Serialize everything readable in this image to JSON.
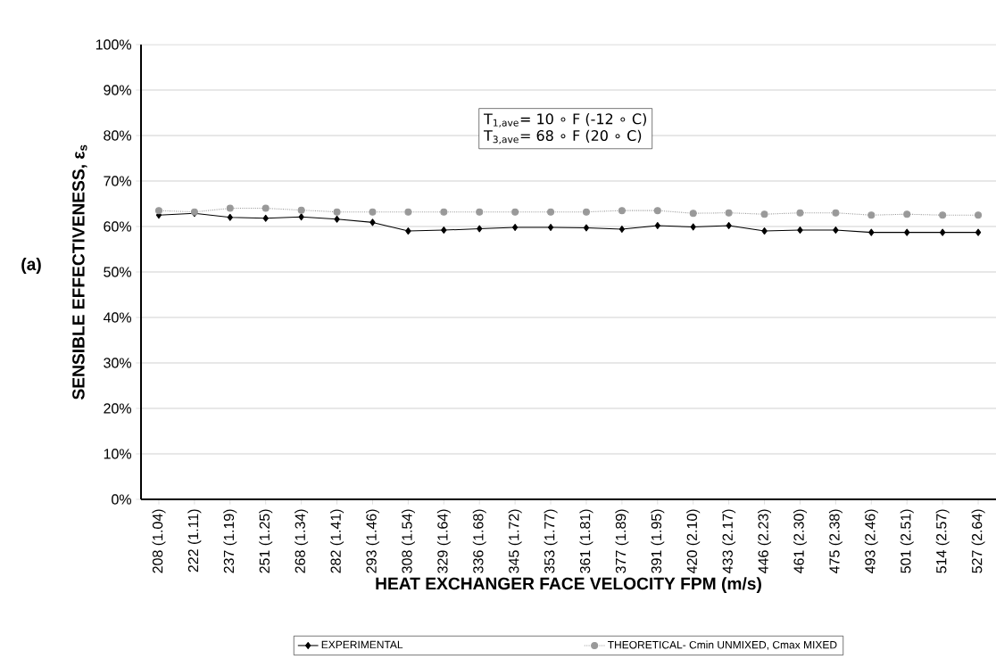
{
  "chart_data": {
    "type": "line",
    "xlabel": "HEAT EXCHANGER FACE VELOCITY FPM (m/s)",
    "ylabel": "SENSIBLE EFFECTIVENESS, ε$_{s}$",
    "categories": [
      "208 (1.04)",
      "222 (1.11)",
      "237 (1.19)",
      "251 (1.25)",
      "268 (1.34)",
      "282 (1.41)",
      "293 (1.46)",
      "308 (1.54)",
      "329 (1.64)",
      "336 (1.68)",
      "345 (1.72)",
      "353 (1.77)",
      "361 (1.81)",
      "377 (1.89)",
      "391 (1.95)",
      "420 (2.10)",
      "433 (2.17)",
      "446 (2.23)",
      "461 (2.30)",
      "475 (2.38)",
      "493 (2.46)",
      "501 (2.51)",
      "514 (2.57)",
      "527 (2.64)"
    ],
    "series": [
      {
        "name": "EXPERIMENTAL",
        "color": "#000000",
        "marker": "diamond",
        "line_style": "solid",
        "values": [
          62.5,
          62.9,
          62.0,
          61.8,
          62.1,
          61.6,
          60.9,
          59.0,
          59.2,
          59.5,
          59.8,
          59.8,
          59.7,
          59.4,
          60.2,
          59.9,
          60.2,
          59.0,
          59.2,
          59.2,
          58.7,
          58.7,
          58.7,
          58.7
        ]
      },
      {
        "name": "THEORETICAL- Cmin UNMIXED, Cmax MIXED",
        "color": "#999999",
        "marker": "circle",
        "line_style": "dotted",
        "values": [
          63.5,
          63.2,
          64.0,
          64.0,
          63.6,
          63.2,
          63.2,
          63.2,
          63.2,
          63.2,
          63.2,
          63.2,
          63.2,
          63.5,
          63.5,
          62.9,
          63.0,
          62.7,
          63.0,
          63.0,
          62.5,
          62.7,
          62.5,
          62.5
        ]
      }
    ],
    "ylim": [
      0,
      100
    ],
    "yticks": [
      {
        "value": 0,
        "label": "0%"
      },
      {
        "value": 10,
        "label": "10%"
      },
      {
        "value": 20,
        "label": "20%"
      },
      {
        "value": 30,
        "label": "30%"
      },
      {
        "value": 40,
        "label": "40%"
      },
      {
        "value": 50,
        "label": "50%"
      },
      {
        "value": 60,
        "label": "60%"
      },
      {
        "value": 70,
        "label": "70%"
      },
      {
        "value": 80,
        "label": "80%"
      },
      {
        "value": 90,
        "label": "90%"
      },
      {
        "value": 100,
        "label": "100%"
      }
    ],
    "grid": "y",
    "legend": "bottom",
    "annotations": [
      "T$_{1,ave}$= 10 ∘ F (-12 ∘ C)",
      "T$_{3,ave}$=  68 ∘ F (20 ∘ C)",
      "(a)"
    ]
  }
}
